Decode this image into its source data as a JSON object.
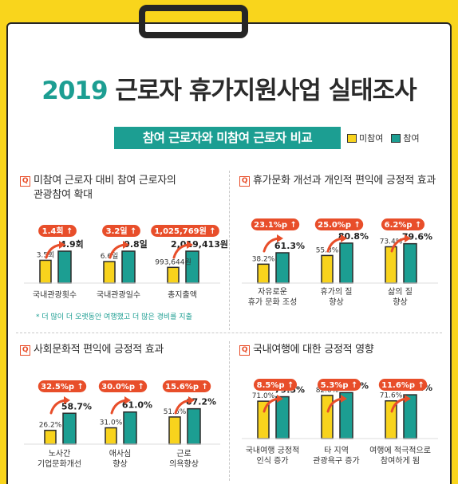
{
  "title_year": "2019",
  "title_rest": "근로자 휴가지원사업 실태조사",
  "subtitle": "참여 근로자와 미참여 근로자 비교",
  "legend": [
    {
      "label": "미참여",
      "color": "#F8D31D"
    },
    {
      "label": "참여",
      "color": "#1C9E92"
    }
  ],
  "colors": {
    "nonparticipant": "#F8D31D",
    "participant": "#1C9E92",
    "badge": "#E84E2A",
    "outline": "#2A2A2A"
  },
  "chart_data": [
    {
      "type": "bar",
      "q_badge": "Q",
      "title": "미참여 근로자 대비 참여 근로자의 관광참여 확대",
      "title_lines": [
        "미참여 근로자 대비 참여 근로자의",
        "관광참여 확대"
      ],
      "note": "* 더 많이 더 오랫동안 여행했고 더 많은 경비를 지출",
      "categories": [
        [
          "국내관광횟수"
        ],
        [
          "국내관광일수"
        ],
        [
          "총지출액"
        ]
      ],
      "series": [
        {
          "name": "미참여",
          "values": [
            3.5,
            6.6,
            993644
          ],
          "labels": [
            "3.5회",
            "6.6일",
            "993,644원"
          ]
        },
        {
          "name": "참여",
          "values": [
            4.9,
            9.8,
            2019413
          ],
          "labels": [
            "4.9회",
            "9.8일",
            "2,019,413원"
          ]
        }
      ],
      "differences": [
        "1.4회",
        "3.2일",
        "1,025,769원"
      ]
    },
    {
      "type": "bar",
      "q_badge": "Q",
      "title": "휴가문화 개선과 개인적 편익에 긍정적 효과",
      "title_lines": [
        "휴가문화 개선과 개인적 편익에 긍정적 효과"
      ],
      "categories": [
        [
          "자유로운",
          "휴가 문화 조성"
        ],
        [
          "휴가의 질",
          "향상"
        ],
        [
          "삶의 질",
          "향상"
        ]
      ],
      "series": [
        {
          "name": "미참여",
          "values": [
            38.2,
            55.8,
            73.4
          ],
          "labels": [
            "38.2%",
            "55.8%",
            "73.4%"
          ]
        },
        {
          "name": "참여",
          "values": [
            61.3,
            80.8,
            79.6
          ],
          "labels": [
            "61.3%",
            "80.8%",
            "79.6%"
          ]
        }
      ],
      "differences": [
        "23.1%p",
        "25.0%p",
        "6.2%p"
      ]
    },
    {
      "type": "bar",
      "q_badge": "Q",
      "title": "사회문화적 편익에 긍정적 효과",
      "title_lines": [
        "사회문화적 편익에 긍정적 효과"
      ],
      "categories": [
        [
          "노사간",
          "기업문화개선"
        ],
        [
          "애사심",
          "향상"
        ],
        [
          "근로",
          "의욕향상"
        ]
      ],
      "series": [
        {
          "name": "미참여",
          "values": [
            26.2,
            31.0,
            51.6
          ],
          "labels": [
            "26.2%",
            "31.0%",
            "51.6%"
          ]
        },
        {
          "name": "참여",
          "values": [
            58.7,
            61.0,
            67.2
          ],
          "labels": [
            "58.7%",
            "61.0%",
            "67.2%"
          ]
        }
      ],
      "differences": [
        "32.5%p",
        "30.0%p",
        "15.6%p"
      ]
    },
    {
      "type": "bar",
      "q_badge": "Q",
      "title": "국내여행에 대한 긍정적 영향",
      "title_lines": [
        "국내여행에 대한 긍정적 영향"
      ],
      "categories": [
        [
          "국내여행 긍정적",
          "인식 증가"
        ],
        [
          "타 지역",
          "관광욕구 증가"
        ],
        [
          "여행에 적극적으로",
          "참여하게 됨"
        ]
      ],
      "series": [
        {
          "name": "미참여",
          "values": [
            71.0,
            82.0,
            71.6
          ],
          "labels": [
            "71.0%",
            "82.0%",
            "71.6%"
          ]
        },
        {
          "name": "참여",
          "values": [
            79.5,
            87.3,
            83.2
          ],
          "labels": [
            "79.5%",
            "87.3%",
            "83.2%"
          ]
        }
      ],
      "differences": [
        "8.5%p",
        "5.3%p",
        "11.6%p"
      ]
    }
  ]
}
